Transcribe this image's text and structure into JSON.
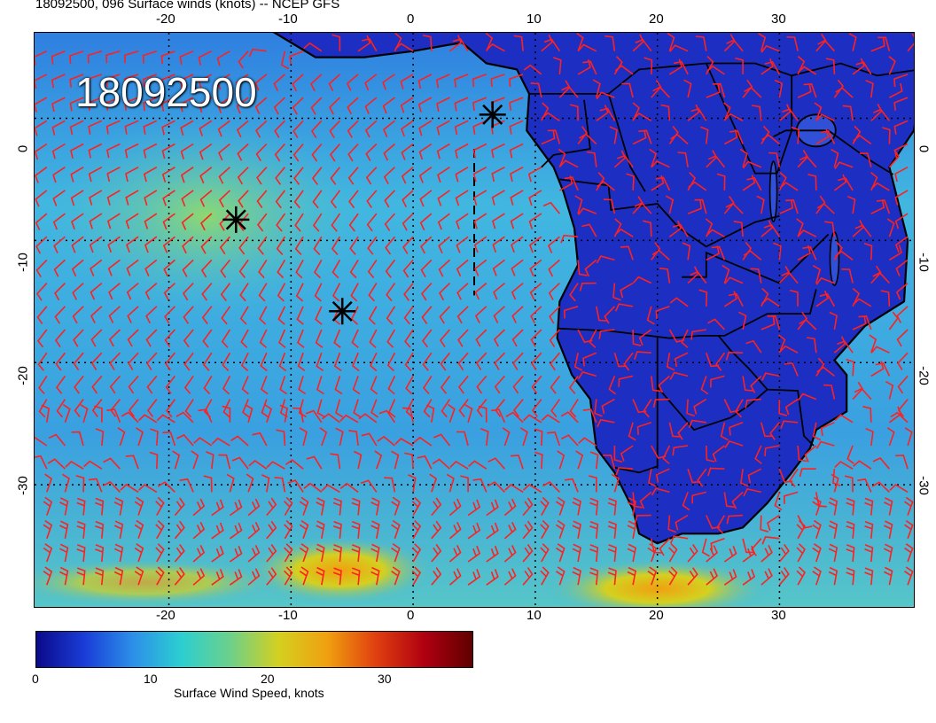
{
  "header": {
    "title": "18092500, 096 Surface winds (knots) -- NCEP GFS",
    "date_stamp": "18092500"
  },
  "map": {
    "lon_range": [
      -31,
      41
    ],
    "lat_range": [
      -40,
      7
    ],
    "x_ticks_top": [
      "-20",
      "-10",
      "0",
      "10",
      "20",
      "30"
    ],
    "x_ticks_bottom": [
      "-20",
      "-10",
      "0",
      "10",
      "20",
      "30"
    ],
    "y_ticks_left": [
      "0",
      "-10",
      "-20",
      "-30"
    ],
    "y_ticks_right": [
      "0",
      "-10",
      "-20",
      "-30"
    ],
    "land_color": "#1c2fc2",
    "ocean_color": "#41b7e0",
    "barb_color": "#ff2020",
    "coast_color": "#000000",
    "markers": [
      {
        "name": "star-marker",
        "lon": 6.5,
        "lat": 0.3
      },
      {
        "name": "star-marker",
        "lon": -14.5,
        "lat": -8.3
      },
      {
        "name": "star-marker",
        "lon": -5.8,
        "lat": -15.8
      }
    ]
  },
  "colorbar": {
    "label": "Surface Wind Speed, knots",
    "ticks": [
      "0",
      "10",
      "20",
      "30"
    ],
    "range": [
      0,
      37
    ],
    "colors": [
      "#0a0a8a",
      "#1a3dd8",
      "#2c90e8",
      "#2ccfd0",
      "#6cd08a",
      "#d4d020",
      "#f0a010",
      "#e04010",
      "#b00010",
      "#600000"
    ]
  }
}
